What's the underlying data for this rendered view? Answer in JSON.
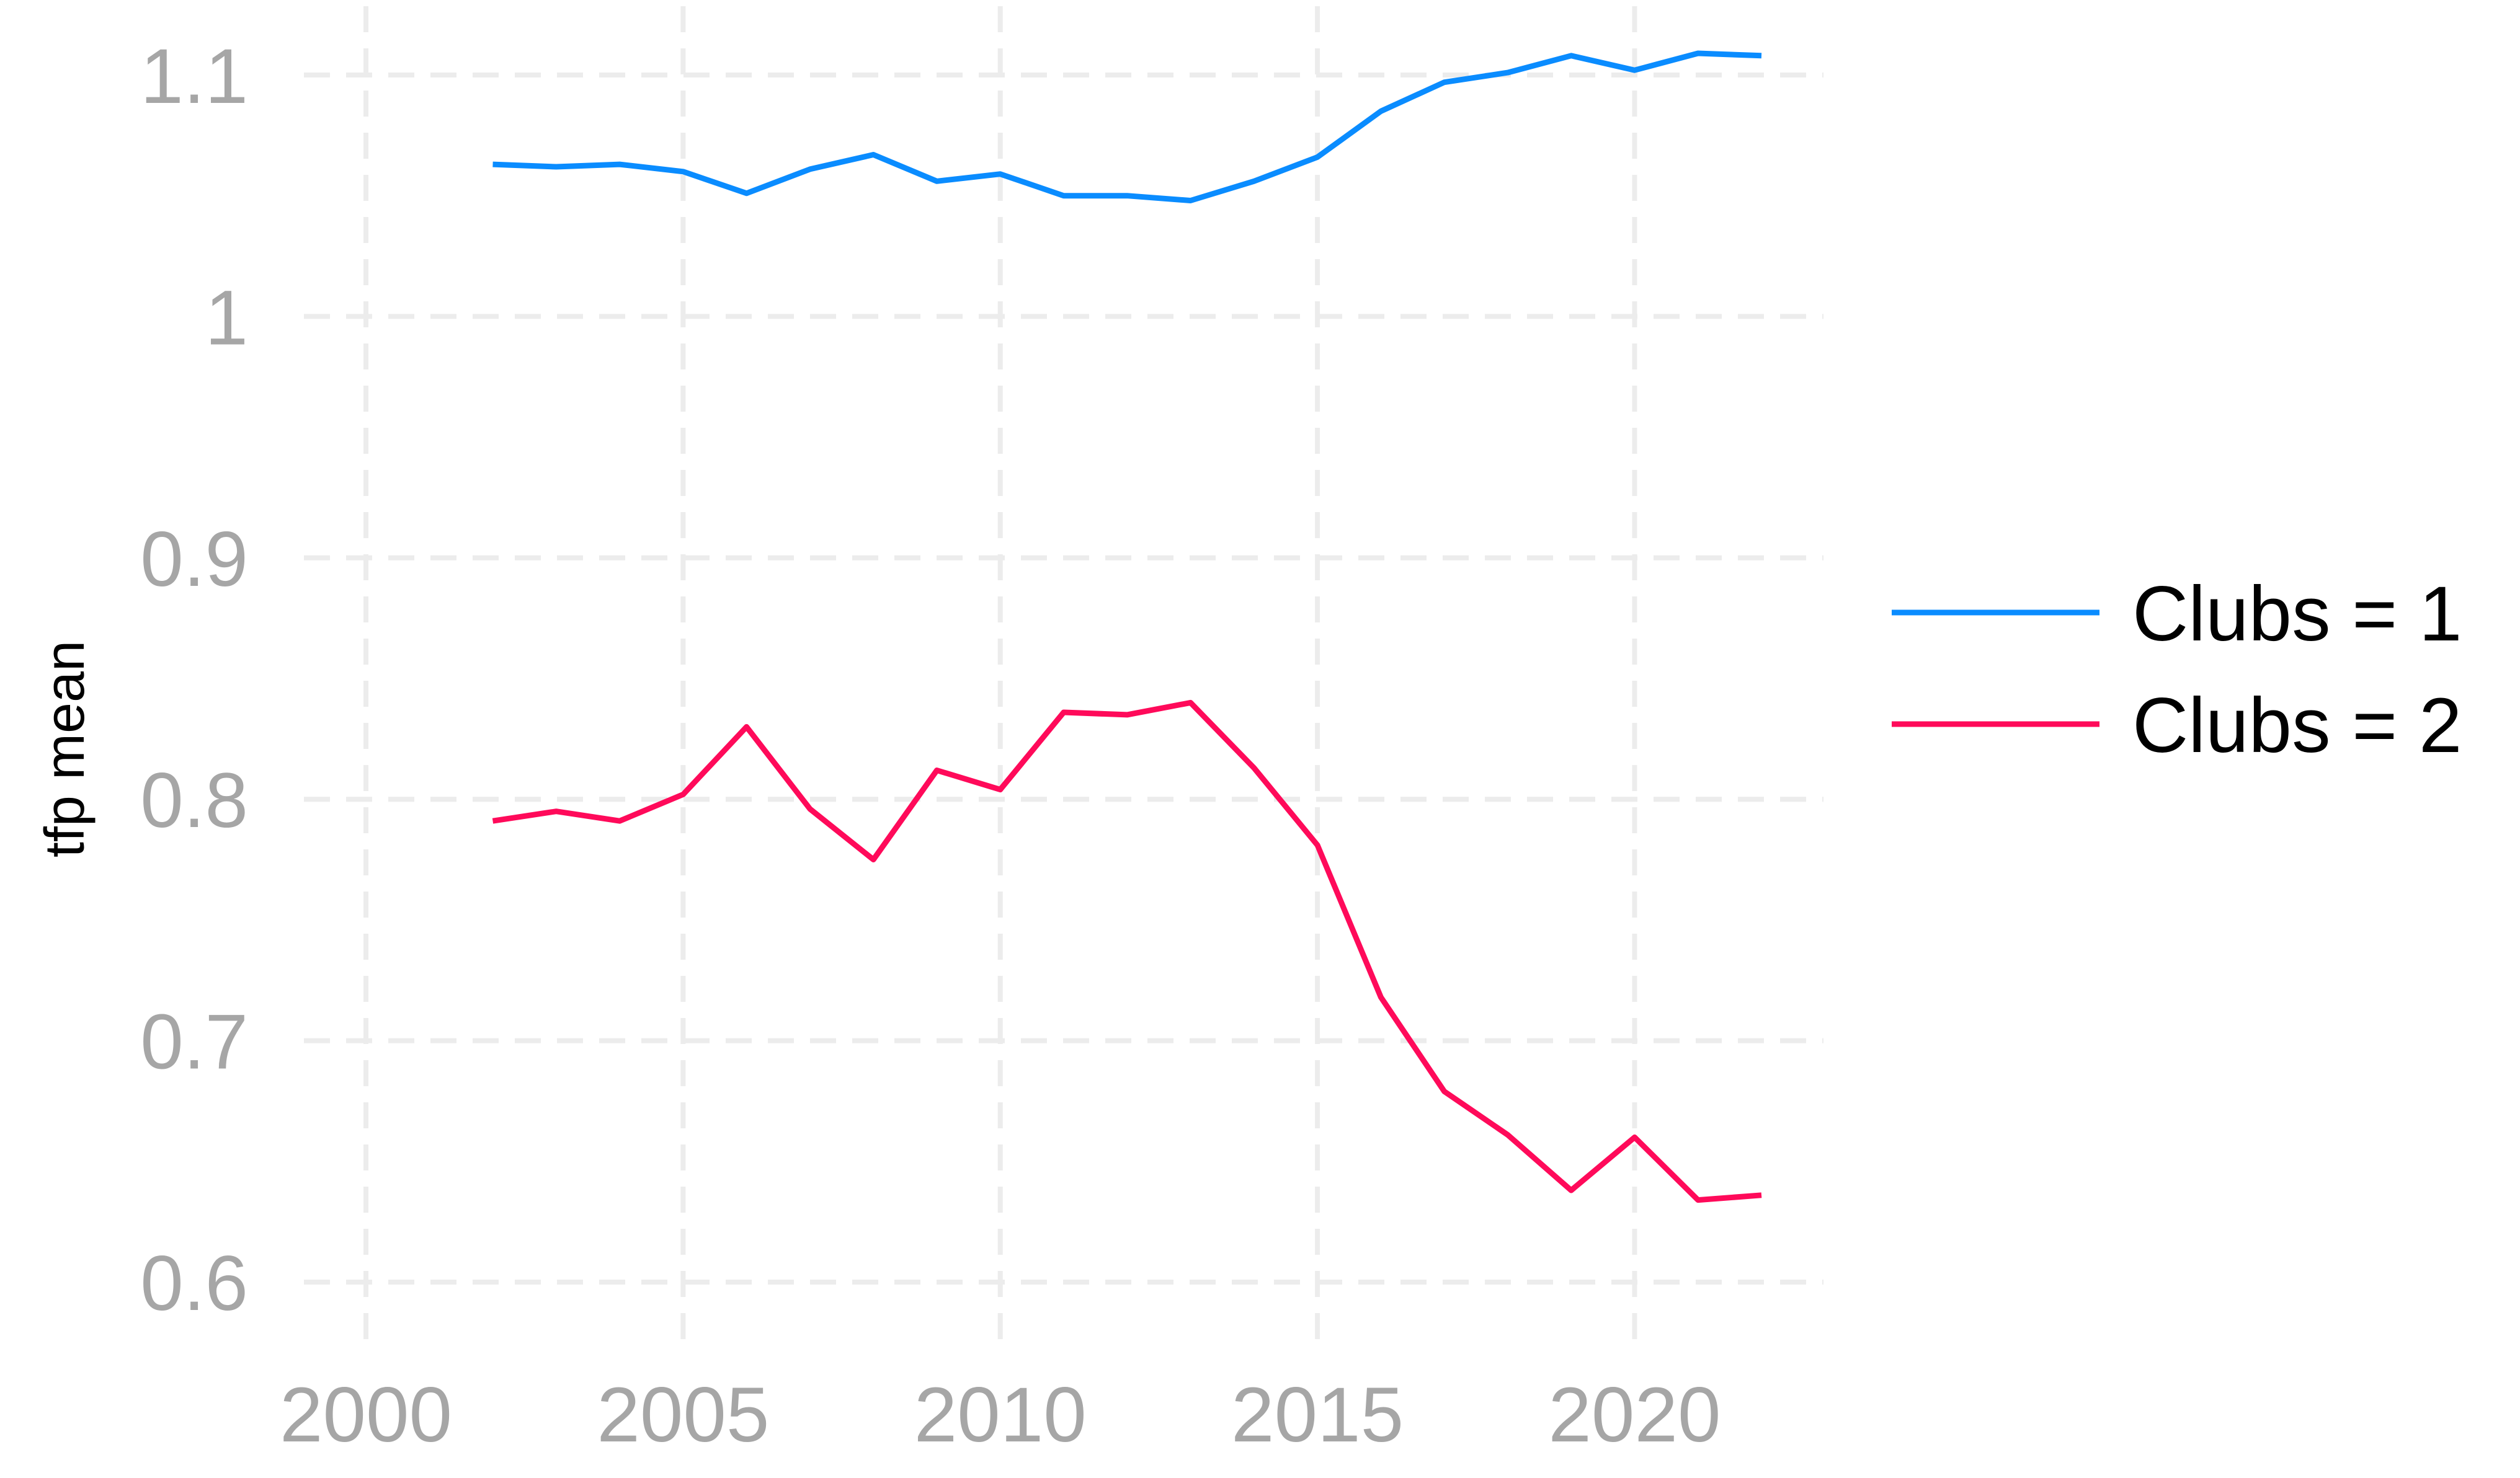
{
  "chart_data": {
    "type": "line",
    "title": "",
    "xlabel": "",
    "ylabel": "tfp mean",
    "xlim": [
      2000,
      2022
    ],
    "ylim": [
      0.6,
      1.1
    ],
    "x_ticks": [
      "2000",
      "2005",
      "2010",
      "2015",
      "2020"
    ],
    "y_ticks": [
      "0.6",
      "0.7",
      "0.8",
      "0.9",
      "1",
      "1.1"
    ],
    "grid": true,
    "legend_position": "right",
    "x": [
      2002,
      2003,
      2004,
      2005,
      2006,
      2007,
      2008,
      2009,
      2010,
      2011,
      2012,
      2013,
      2014,
      2015,
      2016,
      2017,
      2018,
      2019,
      2020,
      2021,
      2022
    ],
    "series": [
      {
        "name": "Clubs = 1",
        "color": "#0a8cff",
        "values": [
          1.063,
          1.062,
          1.063,
          1.06,
          1.051,
          1.061,
          1.067,
          1.056,
          1.059,
          1.05,
          1.05,
          1.048,
          1.056,
          1.066,
          1.085,
          1.097,
          1.101,
          1.108,
          1.102,
          1.109,
          1.108
        ]
      },
      {
        "name": "Clubs = 2",
        "color": "#ff0a5a",
        "values": [
          0.791,
          0.795,
          0.791,
          0.802,
          0.83,
          0.796,
          0.775,
          0.812,
          0.804,
          0.836,
          0.835,
          0.84,
          0.813,
          0.781,
          0.718,
          0.679,
          0.661,
          0.638,
          0.66,
          0.634,
          0.636
        ]
      }
    ]
  }
}
